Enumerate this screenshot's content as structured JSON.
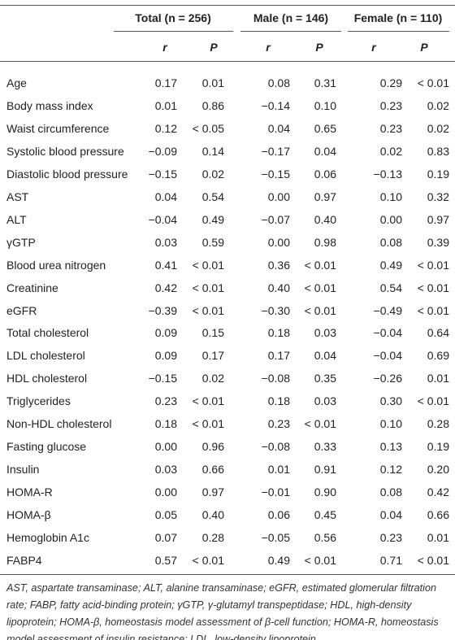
{
  "table": {
    "groups": [
      "Total (n = 256)",
      "Male (n = 146)",
      "Female (n = 110)"
    ],
    "subheaders": [
      "r",
      "P",
      "r",
      "P",
      "r",
      "P"
    ],
    "rows": [
      [
        "Age",
        "0.17",
        "0.01",
        "0.08",
        "0.31",
        "0.29",
        "< 0.01"
      ],
      [
        "Body mass index",
        "0.01",
        "0.86",
        "−0.14",
        "0.10",
        "0.23",
        "0.02"
      ],
      [
        "Waist circumference",
        "0.12",
        "< 0.05",
        "0.04",
        "0.65",
        "0.23",
        "0.02"
      ],
      [
        "Systolic blood pressure",
        "−0.09",
        "0.14",
        "−0.17",
        "0.04",
        "0.02",
        "0.83"
      ],
      [
        "Diastolic blood pressure",
        "−0.15",
        "0.02",
        "−0.15",
        "0.06",
        "−0.13",
        "0.19"
      ],
      [
        "AST",
        "0.04",
        "0.54",
        "0.00",
        "0.97",
        "0.10",
        "0.32"
      ],
      [
        "ALT",
        "−0.04",
        "0.49",
        "−0.07",
        "0.40",
        "0.00",
        "0.97"
      ],
      [
        "γGTP",
        "0.03",
        "0.59",
        "0.00",
        "0.98",
        "0.08",
        "0.39"
      ],
      [
        "Blood urea nitrogen",
        "0.41",
        "< 0.01",
        "0.36",
        "< 0.01",
        "0.49",
        "< 0.01"
      ],
      [
        "Creatinine",
        "0.42",
        "< 0.01",
        "0.40",
        "< 0.01",
        "0.54",
        "< 0.01"
      ],
      [
        "eGFR",
        "−0.39",
        "< 0.01",
        "−0.30",
        "< 0.01",
        "−0.49",
        "< 0.01"
      ],
      [
        "Total cholesterol",
        "0.09",
        "0.15",
        "0.18",
        "0.03",
        "−0.04",
        "0.64"
      ],
      [
        "LDL cholesterol",
        "0.09",
        "0.17",
        "0.17",
        "0.04",
        "−0.04",
        "0.69"
      ],
      [
        "HDL cholesterol",
        "−0.15",
        "0.02",
        "−0.08",
        "0.35",
        "−0.26",
        "0.01"
      ],
      [
        "Triglycerides",
        "0.23",
        "< 0.01",
        "0.18",
        "0.03",
        "0.30",
        "< 0.01"
      ],
      [
        "Non-HDL cholesterol",
        "0.18",
        "< 0.01",
        "0.23",
        "< 0.01",
        "0.10",
        "0.28"
      ],
      [
        "Fasting glucose",
        "0.00",
        "0.96",
        "−0.08",
        "0.33",
        "0.13",
        "0.19"
      ],
      [
        "Insulin",
        "0.03",
        "0.66",
        "0.01",
        "0.91",
        "0.12",
        "0.20"
      ],
      [
        "HOMA-R",
        "0.00",
        "0.97",
        "−0.01",
        "0.90",
        "0.08",
        "0.42"
      ],
      [
        "HOMA-β",
        "0.05",
        "0.40",
        "0.06",
        "0.45",
        "0.04",
        "0.66"
      ],
      [
        "Hemoglobin A1c",
        "0.07",
        "0.28",
        "−0.05",
        "0.56",
        "0.23",
        "0.01"
      ],
      [
        "FABP4",
        "0.57",
        "< 0.01",
        "0.49",
        "< 0.01",
        "0.71",
        "< 0.01"
      ]
    ],
    "footnote": "AST, aspartate transaminase; ALT, alanine transaminase; eGFR, estimated glomerular filtration rate; FABP, fatty acid-binding protein; γGTP, γ-glutamyl transpeptidase; HDL, high-density lipoprotein; HOMA-β, homeostasis model assessment of β-cell function; HOMA-R, homeostasis model assessment of insulin resistance; LDL, low-density lipoprotein."
  }
}
